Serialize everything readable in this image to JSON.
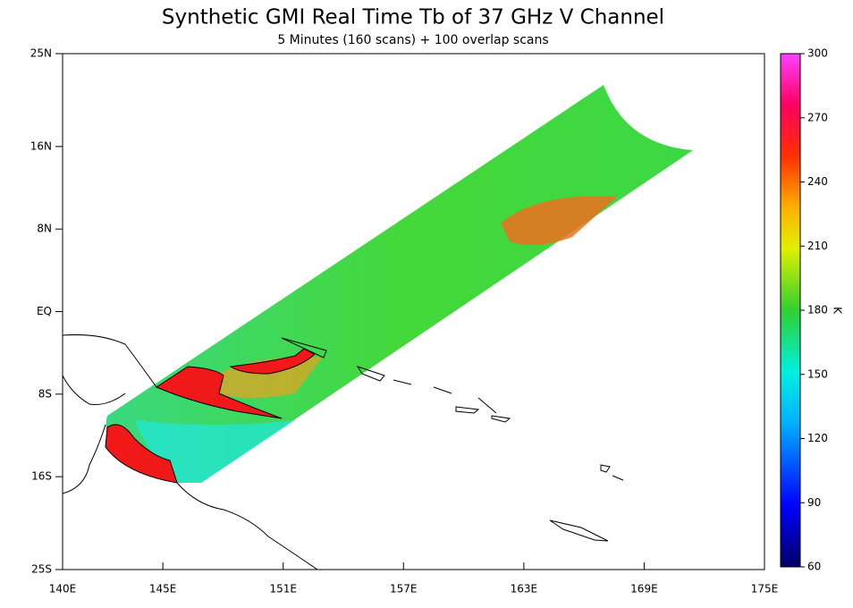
{
  "title": "Synthetic GMI Real Time Tb of 37 GHz V Channel",
  "subtitle": "5 Minutes (160 scans) + 100 overlap scans",
  "map": {
    "lonlim": [
      140,
      175
    ],
    "latlim": [
      -25,
      25
    ],
    "lon_ticks": [
      {
        "value": 140,
        "label": "140E"
      },
      {
        "value": 145,
        "label": "145E"
      },
      {
        "value": 151,
        "label": "151E"
      },
      {
        "value": 157,
        "label": "157E"
      },
      {
        "value": 163,
        "label": "163E"
      },
      {
        "value": 169,
        "label": "169E"
      },
      {
        "value": 175,
        "label": "175E"
      }
    ],
    "lat_ticks": [
      {
        "value": 25,
        "label": "25N"
      },
      {
        "value": 16,
        "label": "16N"
      },
      {
        "value": 8,
        "label": "8N"
      },
      {
        "value": 0,
        "label": "EQ"
      },
      {
        "value": -8,
        "label": "8S"
      },
      {
        "value": -16,
        "label": "16S"
      },
      {
        "value": -25,
        "label": "25S"
      }
    ]
  },
  "colorbar": {
    "unit": "K",
    "lim": [
      60,
      300
    ],
    "ticks": [
      60,
      90,
      120,
      150,
      180,
      210,
      240,
      270,
      300
    ]
  }
}
